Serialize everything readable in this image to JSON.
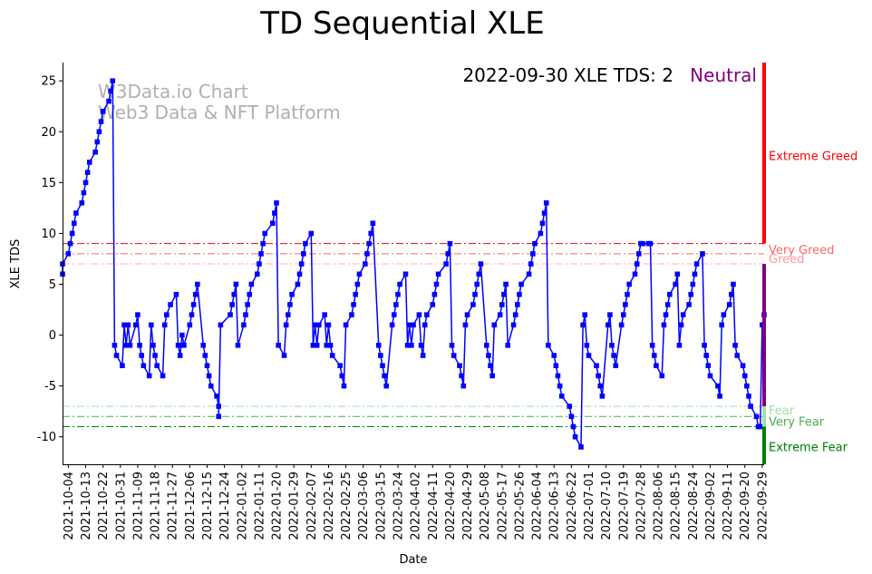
{
  "chart_data": {
    "type": "line",
    "title": "TD Sequential XLE",
    "xlabel": "Date",
    "ylabel": "XLE TDS",
    "xlim": [
      "2021-10-01",
      "2022-09-30"
    ],
    "ylim": [
      -12.7,
      26.8
    ],
    "yticks": [
      -10,
      -5,
      0,
      5,
      10,
      15,
      20,
      25
    ],
    "xticks": [
      "2021-10-04",
      "2021-10-13",
      "2021-10-22",
      "2021-10-31",
      "2021-11-09",
      "2021-11-18",
      "2021-11-27",
      "2021-12-06",
      "2021-12-15",
      "2021-12-24",
      "2022-01-02",
      "2022-01-11",
      "2022-01-20",
      "2022-01-29",
      "2022-02-07",
      "2022-02-16",
      "2022-02-25",
      "2022-03-06",
      "2022-03-15",
      "2022-03-24",
      "2022-04-02",
      "2022-04-11",
      "2022-04-20",
      "2022-04-29",
      "2022-05-08",
      "2022-05-17",
      "2022-05-26",
      "2022-06-04",
      "2022-06-13",
      "2022-06-22",
      "2022-07-01",
      "2022-07-10",
      "2022-07-19",
      "2022-07-28",
      "2022-08-06",
      "2022-08-15",
      "2022-08-24",
      "2022-09-02",
      "2022-09-11",
      "2022-09-20",
      "2022-09-29"
    ],
    "grid": false,
    "legend": "none",
    "series": [
      {
        "color": "#0000ff",
        "marker": "square",
        "points": [
          [
            "2021-10-01",
            6
          ],
          [
            "2021-10-01",
            7
          ],
          [
            "2021-10-04",
            8
          ],
          [
            "2021-10-05",
            9
          ],
          [
            "2021-10-06",
            10
          ],
          [
            "2021-10-07",
            11
          ],
          [
            "2021-10-08",
            12
          ],
          [
            "2021-10-11",
            13
          ],
          [
            "2021-10-12",
            14
          ],
          [
            "2021-10-13",
            15
          ],
          [
            "2021-10-14",
            16
          ],
          [
            "2021-10-15",
            17
          ],
          [
            "2021-10-18",
            18
          ],
          [
            "2021-10-19",
            19
          ],
          [
            "2021-10-20",
            20
          ],
          [
            "2021-10-21",
            21
          ],
          [
            "2021-10-22",
            22
          ],
          [
            "2021-10-25",
            23
          ],
          [
            "2021-10-26",
            24
          ],
          [
            "2021-10-27",
            25
          ],
          [
            "2021-10-28",
            -1
          ],
          [
            "2021-10-29",
            -2
          ],
          [
            "2021-11-01",
            -3
          ],
          [
            "2021-11-02",
            1
          ],
          [
            "2021-11-03",
            -1
          ],
          [
            "2021-11-04",
            1
          ],
          [
            "2021-11-05",
            -1
          ],
          [
            "2021-11-08",
            1
          ],
          [
            "2021-11-09",
            2
          ],
          [
            "2021-11-10",
            -1
          ],
          [
            "2021-11-11",
            -2
          ],
          [
            "2021-11-12",
            -3
          ],
          [
            "2021-11-15",
            -4
          ],
          [
            "2021-11-16",
            1
          ],
          [
            "2021-11-17",
            -1
          ],
          [
            "2021-11-18",
            -2
          ],
          [
            "2021-11-19",
            -3
          ],
          [
            "2021-11-22",
            -4
          ],
          [
            "2021-11-23",
            1
          ],
          [
            "2021-11-24",
            2
          ],
          [
            "2021-11-26",
            3
          ],
          [
            "2021-11-29",
            4
          ],
          [
            "2021-11-30",
            -1
          ],
          [
            "2021-12-01",
            -2
          ],
          [
            "2021-12-02",
            0
          ],
          [
            "2021-12-03",
            -1
          ],
          [
            "2021-12-06",
            1
          ],
          [
            "2021-12-07",
            2
          ],
          [
            "2021-12-08",
            3
          ],
          [
            "2021-12-09",
            4
          ],
          [
            "2021-12-10",
            5
          ],
          [
            "2021-12-13",
            -1
          ],
          [
            "2021-12-14",
            -2
          ],
          [
            "2021-12-15",
            -3
          ],
          [
            "2021-12-16",
            -4
          ],
          [
            "2021-12-17",
            -5
          ],
          [
            "2021-12-20",
            -6
          ],
          [
            "2021-12-21",
            -7
          ],
          [
            "2021-12-21",
            -8
          ],
          [
            "2021-12-22",
            1
          ],
          [
            "2021-12-27",
            2
          ],
          [
            "2021-12-28",
            3
          ],
          [
            "2021-12-29",
            4
          ],
          [
            "2021-12-30",
            5
          ],
          [
            "2021-12-31",
            -1
          ],
          [
            "2022-01-03",
            1
          ],
          [
            "2022-01-04",
            2
          ],
          [
            "2022-01-05",
            3
          ],
          [
            "2022-01-06",
            4
          ],
          [
            "2022-01-07",
            5
          ],
          [
            "2022-01-10",
            6
          ],
          [
            "2022-01-11",
            7
          ],
          [
            "2022-01-12",
            8
          ],
          [
            "2022-01-13",
            9
          ],
          [
            "2022-01-14",
            10
          ],
          [
            "2022-01-18",
            11
          ],
          [
            "2022-01-19",
            12
          ],
          [
            "2022-01-20",
            13
          ],
          [
            "2022-01-21",
            -1
          ],
          [
            "2022-01-24",
            -2
          ],
          [
            "2022-01-25",
            1
          ],
          [
            "2022-01-26",
            2
          ],
          [
            "2022-01-27",
            3
          ],
          [
            "2022-01-28",
            4
          ],
          [
            "2022-01-31",
            5
          ],
          [
            "2022-02-01",
            6
          ],
          [
            "2022-02-02",
            7
          ],
          [
            "2022-02-03",
            8
          ],
          [
            "2022-02-04",
            9
          ],
          [
            "2022-02-07",
            10
          ],
          [
            "2022-02-08",
            -1
          ],
          [
            "2022-02-09",
            1
          ],
          [
            "2022-02-10",
            -1
          ],
          [
            "2022-02-11",
            1
          ],
          [
            "2022-02-14",
            2
          ],
          [
            "2022-02-15",
            -1
          ],
          [
            "2022-02-16",
            1
          ],
          [
            "2022-02-17",
            -1
          ],
          [
            "2022-02-18",
            -2
          ],
          [
            "2022-02-22",
            -3
          ],
          [
            "2022-02-23",
            -4
          ],
          [
            "2022-02-24",
            -5
          ],
          [
            "2022-02-25",
            1
          ],
          [
            "2022-02-28",
            2
          ],
          [
            "2022-03-01",
            3
          ],
          [
            "2022-03-02",
            4
          ],
          [
            "2022-03-03",
            5
          ],
          [
            "2022-03-04",
            6
          ],
          [
            "2022-03-07",
            7
          ],
          [
            "2022-03-08",
            8
          ],
          [
            "2022-03-09",
            9
          ],
          [
            "2022-03-10",
            10
          ],
          [
            "2022-03-11",
            11
          ],
          [
            "2022-03-14",
            -1
          ],
          [
            "2022-03-15",
            -2
          ],
          [
            "2022-03-16",
            -3
          ],
          [
            "2022-03-17",
            -4
          ],
          [
            "2022-03-18",
            -5
          ],
          [
            "2022-03-21",
            1
          ],
          [
            "2022-03-22",
            2
          ],
          [
            "2022-03-23",
            3
          ],
          [
            "2022-03-24",
            4
          ],
          [
            "2022-03-25",
            5
          ],
          [
            "2022-03-28",
            6
          ],
          [
            "2022-03-29",
            -1
          ],
          [
            "2022-03-30",
            1
          ],
          [
            "2022-03-31",
            -1
          ],
          [
            "2022-04-01",
            1
          ],
          [
            "2022-04-04",
            2
          ],
          [
            "2022-04-05",
            -1
          ],
          [
            "2022-04-06",
            -2
          ],
          [
            "2022-04-07",
            1
          ],
          [
            "2022-04-08",
            2
          ],
          [
            "2022-04-11",
            3
          ],
          [
            "2022-04-12",
            4
          ],
          [
            "2022-04-13",
            5
          ],
          [
            "2022-04-14",
            6
          ],
          [
            "2022-04-18",
            7
          ],
          [
            "2022-04-19",
            8
          ],
          [
            "2022-04-20",
            9
          ],
          [
            "2022-04-21",
            -1
          ],
          [
            "2022-04-22",
            -2
          ],
          [
            "2022-04-25",
            -3
          ],
          [
            "2022-04-26",
            -4
          ],
          [
            "2022-04-27",
            -5
          ],
          [
            "2022-04-28",
            1
          ],
          [
            "2022-04-29",
            2
          ],
          [
            "2022-05-02",
            3
          ],
          [
            "2022-05-03",
            4
          ],
          [
            "2022-05-04",
            5
          ],
          [
            "2022-05-05",
            6
          ],
          [
            "2022-05-06",
            7
          ],
          [
            "2022-05-09",
            -1
          ],
          [
            "2022-05-10",
            -2
          ],
          [
            "2022-05-11",
            -3
          ],
          [
            "2022-05-12",
            -4
          ],
          [
            "2022-05-13",
            1
          ],
          [
            "2022-05-16",
            2
          ],
          [
            "2022-05-17",
            3
          ],
          [
            "2022-05-18",
            4
          ],
          [
            "2022-05-19",
            5
          ],
          [
            "2022-05-20",
            -1
          ],
          [
            "2022-05-23",
            1
          ],
          [
            "2022-05-24",
            2
          ],
          [
            "2022-05-25",
            3
          ],
          [
            "2022-05-26",
            4
          ],
          [
            "2022-05-27",
            5
          ],
          [
            "2022-05-31",
            6
          ],
          [
            "2022-06-01",
            7
          ],
          [
            "2022-06-02",
            8
          ],
          [
            "2022-06-03",
            9
          ],
          [
            "2022-06-06",
            10
          ],
          [
            "2022-06-07",
            11
          ],
          [
            "2022-06-08",
            12
          ],
          [
            "2022-06-09",
            13
          ],
          [
            "2022-06-10",
            -1
          ],
          [
            "2022-06-13",
            -2
          ],
          [
            "2022-06-14",
            -3
          ],
          [
            "2022-06-15",
            -4
          ],
          [
            "2022-06-16",
            -5
          ],
          [
            "2022-06-17",
            -6
          ],
          [
            "2022-06-21",
            -7
          ],
          [
            "2022-06-22",
            -8
          ],
          [
            "2022-06-23",
            -9
          ],
          [
            "2022-06-24",
            -10
          ],
          [
            "2022-06-27",
            -11
          ],
          [
            "2022-06-28",
            1
          ],
          [
            "2022-06-29",
            2
          ],
          [
            "2022-06-30",
            -1
          ],
          [
            "2022-07-01",
            -2
          ],
          [
            "2022-07-05",
            -3
          ],
          [
            "2022-07-06",
            -4
          ],
          [
            "2022-07-07",
            -5
          ],
          [
            "2022-07-08",
            -6
          ],
          [
            "2022-07-11",
            1
          ],
          [
            "2022-07-12",
            2
          ],
          [
            "2022-07-13",
            -1
          ],
          [
            "2022-07-14",
            -2
          ],
          [
            "2022-07-15",
            -3
          ],
          [
            "2022-07-18",
            1
          ],
          [
            "2022-07-19",
            2
          ],
          [
            "2022-07-20",
            3
          ],
          [
            "2022-07-21",
            4
          ],
          [
            "2022-07-22",
            5
          ],
          [
            "2022-07-25",
            6
          ],
          [
            "2022-07-26",
            7
          ],
          [
            "2022-07-27",
            8
          ],
          [
            "2022-07-28",
            9
          ],
          [
            "2022-07-29",
            9
          ],
          [
            "2022-08-01",
            9
          ],
          [
            "2022-08-02",
            9
          ],
          [
            "2022-08-03",
            -1
          ],
          [
            "2022-08-04",
            -2
          ],
          [
            "2022-08-05",
            -3
          ],
          [
            "2022-08-08",
            -4
          ],
          [
            "2022-08-09",
            1
          ],
          [
            "2022-08-10",
            2
          ],
          [
            "2022-08-11",
            3
          ],
          [
            "2022-08-12",
            4
          ],
          [
            "2022-08-15",
            5
          ],
          [
            "2022-08-16",
            6
          ],
          [
            "2022-08-17",
            -1
          ],
          [
            "2022-08-18",
            1
          ],
          [
            "2022-08-19",
            2
          ],
          [
            "2022-08-22",
            3
          ],
          [
            "2022-08-23",
            4
          ],
          [
            "2022-08-24",
            5
          ],
          [
            "2022-08-25",
            6
          ],
          [
            "2022-08-26",
            7
          ],
          [
            "2022-08-29",
            8
          ],
          [
            "2022-08-30",
            -1
          ],
          [
            "2022-08-31",
            -2
          ],
          [
            "2022-09-01",
            -3
          ],
          [
            "2022-09-02",
            -4
          ],
          [
            "2022-09-06",
            -5
          ],
          [
            "2022-09-07",
            -6
          ],
          [
            "2022-09-08",
            1
          ],
          [
            "2022-09-09",
            2
          ],
          [
            "2022-09-12",
            3
          ],
          [
            "2022-09-13",
            4
          ],
          [
            "2022-09-14",
            5
          ],
          [
            "2022-09-15",
            -1
          ],
          [
            "2022-09-16",
            -2
          ],
          [
            "2022-09-19",
            -3
          ],
          [
            "2022-09-20",
            -4
          ],
          [
            "2022-09-21",
            -5
          ],
          [
            "2022-09-22",
            -6
          ],
          [
            "2022-09-23",
            -7
          ],
          [
            "2022-09-26",
            -8
          ],
          [
            "2022-09-27",
            -9
          ],
          [
            "2022-09-28",
            -9
          ],
          [
            "2022-09-29",
            1
          ],
          [
            "2022-09-30",
            2
          ]
        ]
      }
    ],
    "reference_lines": [
      {
        "label": "Very Greed",
        "y": 9,
        "color": "#ff0000"
      },
      {
        "label": "Greed",
        "y": 8,
        "color": "#ff6666"
      },
      {
        "label": "",
        "y": 7,
        "color": "#ffb3b3"
      },
      {
        "label": "Fear",
        "y": -7,
        "color": "#a8dca8"
      },
      {
        "label": "Very Fear",
        "y": -8,
        "color": "#4caf50"
      },
      {
        "label": "Extreme Fear",
        "y": -9,
        "color": "#008000"
      }
    ],
    "zone_labels": [
      {
        "label": "Extreme Greed",
        "y": 17.6,
        "color": "#ff0000"
      },
      {
        "label": "Very Greed",
        "y": 8.4,
        "color": "#ff6666"
      },
      {
        "label": "Greed",
        "y": 7.5,
        "color": "#ff9999"
      },
      {
        "label": "Fear",
        "y": -7.4,
        "color": "#a8dca8"
      },
      {
        "label": "Very Fear",
        "y": -8.5,
        "color": "#4caf50"
      },
      {
        "label": "Extreme Fear",
        "y": -11.0,
        "color": "#008000"
      }
    ],
    "indicator_bar": [
      {
        "from": 9,
        "to": 26.8,
        "color": "#ff0000"
      },
      {
        "from": -7,
        "to": 7,
        "color": "#800080"
      },
      {
        "from": -9,
        "to": -7,
        "color": "#a8dca8"
      },
      {
        "from": -12.7,
        "to": -9,
        "color": "#008000"
      }
    ],
    "status": {
      "text": "2022-09-30 XLE TDS: 2",
      "sentiment": "Neutral",
      "sentiment_color": "#800080"
    },
    "watermark": {
      "line1": "W3Data.io Chart",
      "line2": "Web3 Data & NFT Platform"
    }
  }
}
